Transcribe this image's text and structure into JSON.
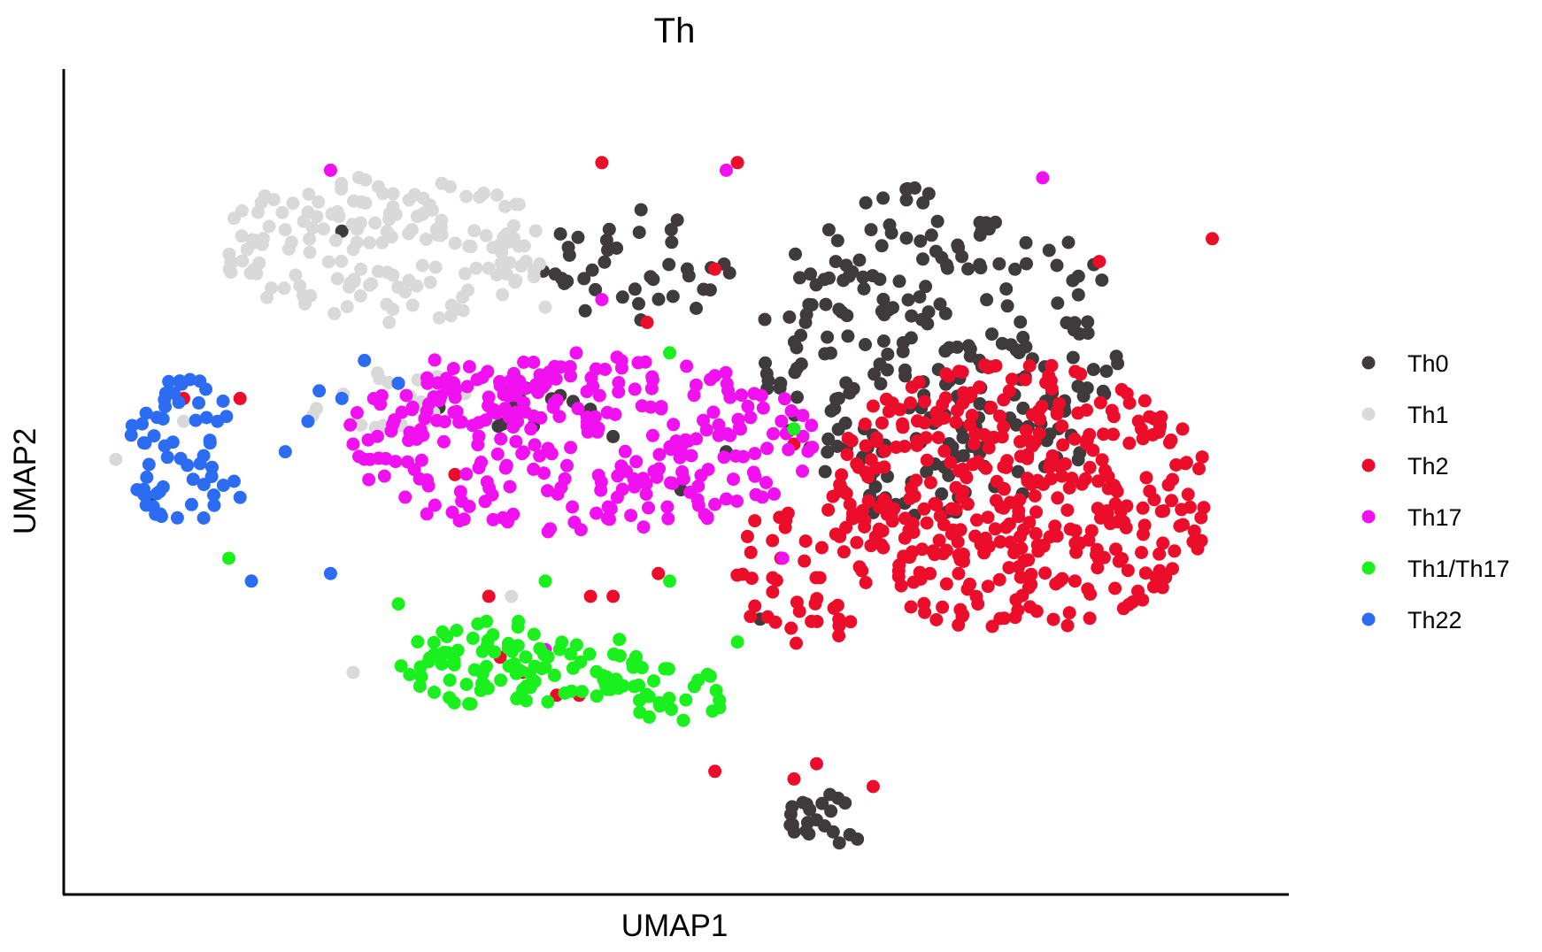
{
  "chart_data": {
    "type": "scatter",
    "title": "Th",
    "xlabel": "UMAP1",
    "ylabel": "UMAP2",
    "xlim": [
      0,
      100
    ],
    "ylim": [
      0,
      100
    ],
    "grid": false,
    "ticks": "none",
    "legend_position": "right",
    "series": [
      {
        "name": "Th0",
        "color": "#3f3a3b",
        "clusters": [
          {
            "cx": 74,
            "cy": 67,
            "rx": 16,
            "ry": 22,
            "n": 260,
            "seed": 11
          },
          {
            "cx": 47,
            "cy": 78,
            "rx": 9,
            "ry": 8,
            "n": 40,
            "seed": 12
          },
          {
            "cx": 37,
            "cy": 60,
            "rx": 8,
            "ry": 3.5,
            "n": 14,
            "seed": 13
          },
          {
            "cx": 64,
            "cy": 6,
            "rx": 4.5,
            "ry": 4,
            "n": 22,
            "seed": 14
          }
        ],
        "points": [
          [
            4,
            48
          ],
          [
            21,
            83
          ],
          [
            51,
            49
          ],
          [
            55,
            54
          ],
          [
            58,
            32
          ],
          [
            68,
            46
          ],
          [
            45,
            56
          ]
        ]
      },
      {
        "name": "Th1",
        "color": "#d9d9d9",
        "clusters": [
          {
            "cx": 25,
            "cy": 81,
            "rx": 15,
            "ry": 10,
            "n": 165,
            "seed": 21
          },
          {
            "cx": 25,
            "cy": 61,
            "rx": 8,
            "ry": 4,
            "n": 20,
            "seed": 22
          }
        ],
        "points": [
          [
            1,
            53
          ],
          [
            7,
            58
          ],
          [
            22,
            25
          ],
          [
            36,
            35
          ],
          [
            38,
            77
          ],
          [
            39,
            73
          ]
        ]
      },
      {
        "name": "Th2",
        "color": "#eb0d2a",
        "clusters": [
          {
            "cx": 81,
            "cy": 48,
            "rx": 17,
            "ry": 18,
            "n": 400,
            "seed": 31
          },
          {
            "cx": 62,
            "cy": 38,
            "rx": 7,
            "ry": 10,
            "n": 45,
            "seed": 32
          }
        ],
        "points": [
          [
            37,
            25
          ],
          [
            45,
            35
          ],
          [
            49,
            38
          ],
          [
            34,
            35
          ],
          [
            42,
            22
          ],
          [
            40,
            22
          ],
          [
            35,
            27
          ],
          [
            43,
            35
          ],
          [
            54,
            12
          ],
          [
            61,
            11
          ],
          [
            68,
            10
          ],
          [
            63,
            13
          ],
          [
            44,
            92
          ],
          [
            56,
            92
          ],
          [
            98,
            82
          ],
          [
            88,
            79
          ],
          [
            54,
            78
          ],
          [
            48,
            71
          ],
          [
            26,
            63
          ],
          [
            31,
            51
          ],
          [
            12,
            61
          ],
          [
            7,
            61
          ],
          [
            68,
            60
          ],
          [
            61,
            55
          ]
        ]
      },
      {
        "name": "Th17",
        "color": "#f010f0",
        "clusters": [
          {
            "cx": 42,
            "cy": 55,
            "rx": 21,
            "ry": 12,
            "n": 270,
            "seed": 41
          },
          {
            "cx": 33,
            "cy": 62,
            "rx": 8,
            "ry": 5,
            "n": 30,
            "seed": 42
          }
        ],
        "points": [
          [
            20,
            91
          ],
          [
            83,
            90
          ],
          [
            55,
            91
          ],
          [
            44,
            74
          ],
          [
            22,
            55
          ],
          [
            39,
            28
          ],
          [
            60,
            40
          ],
          [
            54,
            64
          ]
        ]
      },
      {
        "name": "Th1/Th17",
        "color": "#19f01d",
        "clusters": [
          {
            "cx": 37,
            "cy": 26,
            "rx": 11,
            "ry": 6,
            "n": 100,
            "seed": 51
          },
          {
            "cx": 50,
            "cy": 22,
            "rx": 6,
            "ry": 3.5,
            "n": 28,
            "seed": 52
          }
        ],
        "points": [
          [
            11,
            40
          ],
          [
            39,
            37
          ],
          [
            26,
            34
          ],
          [
            38,
            30
          ],
          [
            50,
            37
          ],
          [
            56,
            29
          ],
          [
            61,
            57
          ],
          [
            50,
            67
          ]
        ]
      },
      {
        "name": "Th22",
        "color": "#2b6cf2",
        "clusters": [
          {
            "cx": 7,
            "cy": 54,
            "rx": 5,
            "ry": 10,
            "n": 60,
            "seed": 61
          }
        ],
        "points": [
          [
            13,
            37
          ],
          [
            20,
            38
          ],
          [
            12,
            48
          ],
          [
            16,
            54
          ],
          [
            18,
            58
          ],
          [
            19,
            62
          ],
          [
            23,
            66
          ],
          [
            26,
            63
          ],
          [
            10,
            58
          ],
          [
            21,
            61
          ]
        ]
      }
    ]
  }
}
